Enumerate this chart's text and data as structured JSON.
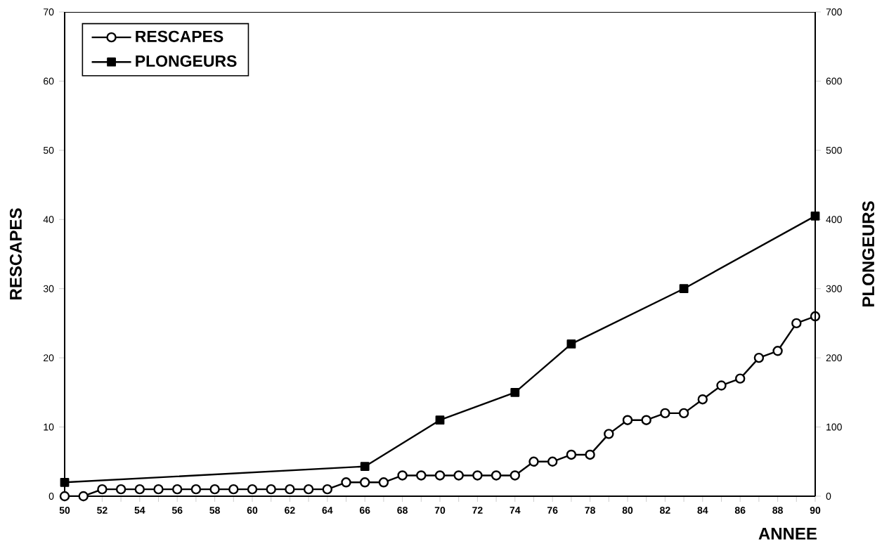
{
  "chart_data": {
    "type": "line",
    "xlabel": "ANNEE",
    "ylabel": "RESCAPES",
    "y2label": "PLONGEURS",
    "series": [
      {
        "name": "RESCAPES",
        "color": "#000000",
        "marker": "circle",
        "x": [
          50,
          51,
          52,
          53,
          54,
          55,
          56,
          57,
          58,
          59,
          60,
          61,
          62,
          63,
          64,
          65,
          66,
          67,
          68,
          69,
          70,
          71,
          72,
          73,
          74,
          75,
          76,
          77,
          78,
          79,
          80,
          81,
          82,
          83,
          84,
          85,
          86,
          87,
          88,
          89,
          90
        ],
        "values": [
          0,
          0,
          1,
          1,
          1,
          1,
          1,
          1,
          1,
          1,
          1,
          1,
          1,
          1,
          1,
          2,
          2,
          2,
          3,
          3,
          3,
          3,
          3,
          3,
          3,
          5,
          5,
          6,
          6,
          9,
          11,
          11,
          12,
          12,
          14,
          16,
          17,
          20,
          21,
          25,
          26
        ]
      },
      {
        "name": "PLONGEURS",
        "color": "#000000",
        "marker": "square",
        "axis": "y2",
        "x": [
          50,
          66,
          70,
          74,
          77,
          83,
          90
        ],
        "values": [
          20,
          43,
          110,
          150,
          220,
          300,
          405
        ]
      }
    ],
    "xlim": [
      50,
      90
    ],
    "xticks": [
      50,
      {
        "value": 51,
        "label": null
      },
      52,
      {
        "value": 53,
        "label": null
      },
      54,
      {
        "value": 55,
        "label": null
      },
      56,
      {
        "value": 57,
        "label": null
      },
      58,
      {
        "value": 59,
        "label": null
      },
      60,
      {
        "value": 61,
        "label": null
      },
      62,
      {
        "value": 63,
        "label": null
      },
      64,
      {
        "value": 65,
        "label": null
      },
      66,
      {
        "value": 67,
        "label": null
      },
      68,
      {
        "value": 69,
        "label": null
      },
      70,
      {
        "value": 71,
        "label": null
      },
      72,
      {
        "value": 73,
        "label": null
      },
      74,
      {
        "value": 75,
        "label": null
      },
      76,
      {
        "value": 77,
        "label": null
      },
      78,
      {
        "value": 79,
        "label": null
      },
      80,
      {
        "value": 81,
        "label": null
      },
      82,
      {
        "value": 83,
        "label": null
      },
      84,
      {
        "value": 85,
        "label": null
      },
      86,
      {
        "value": 87,
        "label": null
      },
      88,
      {
        "value": 89,
        "label": null
      },
      90
    ],
    "ylim": [
      0,
      70
    ],
    "yticks": [
      0,
      10,
      20,
      30,
      40,
      50,
      60,
      70
    ],
    "y2lim": [
      0,
      700
    ],
    "y2ticks": [
      0,
      100,
      200,
      300,
      400,
      500,
      600,
      700
    ],
    "legend": "top left",
    "line_style": "solid"
  }
}
